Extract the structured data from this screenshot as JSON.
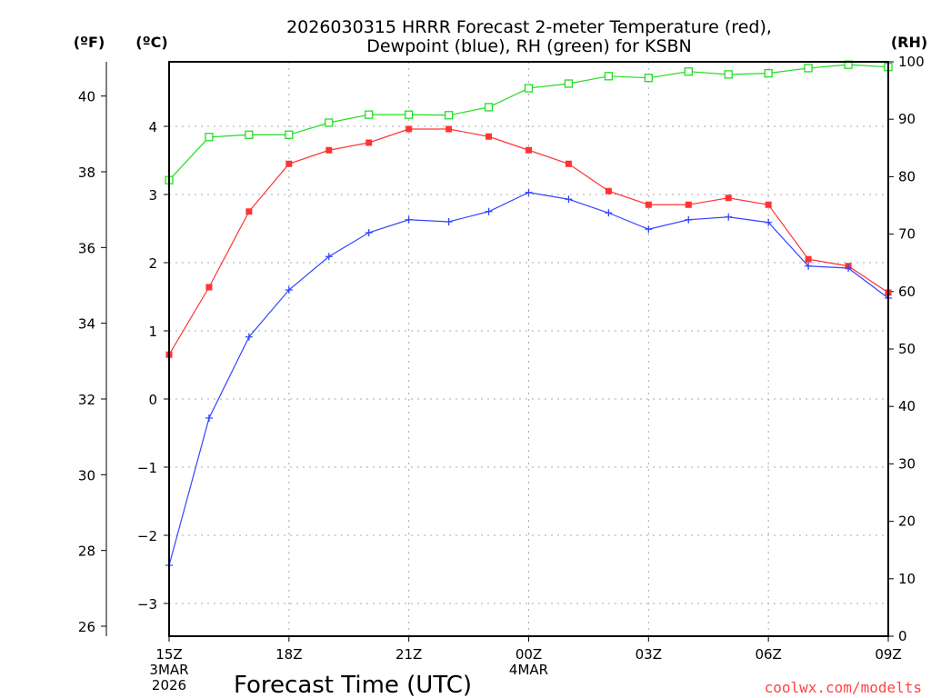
{
  "chart_data": {
    "type": "line",
    "title_line1": "2026030315 HRRR Forecast 2-meter Temperature (red),",
    "title_line2": "Dewpoint (blue), RH (green) for KSBN",
    "xlabel": "Forecast Time (UTC)",
    "credit": "coolwx.com/modelts",
    "axis_labels": {
      "fahrenheit": "(ºF)",
      "celsius": "(ºC)",
      "rh": "(RH)"
    },
    "x_hours": [
      0,
      1,
      2,
      3,
      4,
      5,
      6,
      7,
      8,
      9,
      10,
      11,
      12,
      13,
      14,
      15,
      16,
      17,
      18
    ],
    "x_ticks": [
      {
        "hour": 0,
        "label": "15Z",
        "sub1": "3MAR",
        "sub2": "2026"
      },
      {
        "hour": 3,
        "label": "18Z"
      },
      {
        "hour": 6,
        "label": "21Z"
      },
      {
        "hour": 9,
        "label": "00Z",
        "sub1": "4MAR"
      },
      {
        "hour": 12,
        "label": "03Z"
      },
      {
        "hour": 15,
        "label": "06Z"
      },
      {
        "hour": 18,
        "label": "09Z"
      }
    ],
    "celsius_ticks": [
      "-3",
      "-2",
      "-1",
      "0",
      "1",
      "2",
      "3",
      "4"
    ],
    "fahrenheit_ticks": [
      "26",
      "28",
      "30",
      "32",
      "34",
      "36",
      "38",
      "40"
    ],
    "rh_ticks": [
      "0",
      "10",
      "20",
      "30",
      "40",
      "50",
      "60",
      "70",
      "80",
      "90",
      "100"
    ],
    "ylim_celsius": [
      -3.5,
      4.9
    ],
    "ylim_rh": [
      0,
      100
    ],
    "grid": true,
    "series": [
      {
        "name": "Temperature",
        "axis": "celsius",
        "color": "#ff3333",
        "marker": "filled-square",
        "values": [
          0.65,
          1.64,
          2.75,
          3.45,
          3.65,
          3.76,
          3.96,
          3.96,
          3.85,
          3.65,
          3.45,
          3.05,
          2.85,
          2.85,
          2.95,
          2.85,
          2.05,
          1.95,
          1.56
        ]
      },
      {
        "name": "Dewpoint",
        "axis": "celsius",
        "color": "#3344ff",
        "marker": "plus",
        "values": [
          -2.44,
          -0.28,
          0.91,
          1.6,
          2.09,
          2.44,
          2.63,
          2.6,
          2.75,
          3.03,
          2.93,
          2.73,
          2.49,
          2.63,
          2.67,
          2.59,
          1.95,
          1.92,
          1.48
        ]
      },
      {
        "name": "RH",
        "axis": "rh",
        "color": "#22dd22",
        "marker": "open-square",
        "values": [
          79.4,
          86.9,
          87.3,
          87.3,
          89.4,
          90.8,
          90.8,
          90.7,
          92.1,
          95.4,
          96.2,
          97.5,
          97.2,
          98.3,
          97.8,
          98.0,
          98.9,
          99.5,
          99.1
        ]
      }
    ]
  }
}
